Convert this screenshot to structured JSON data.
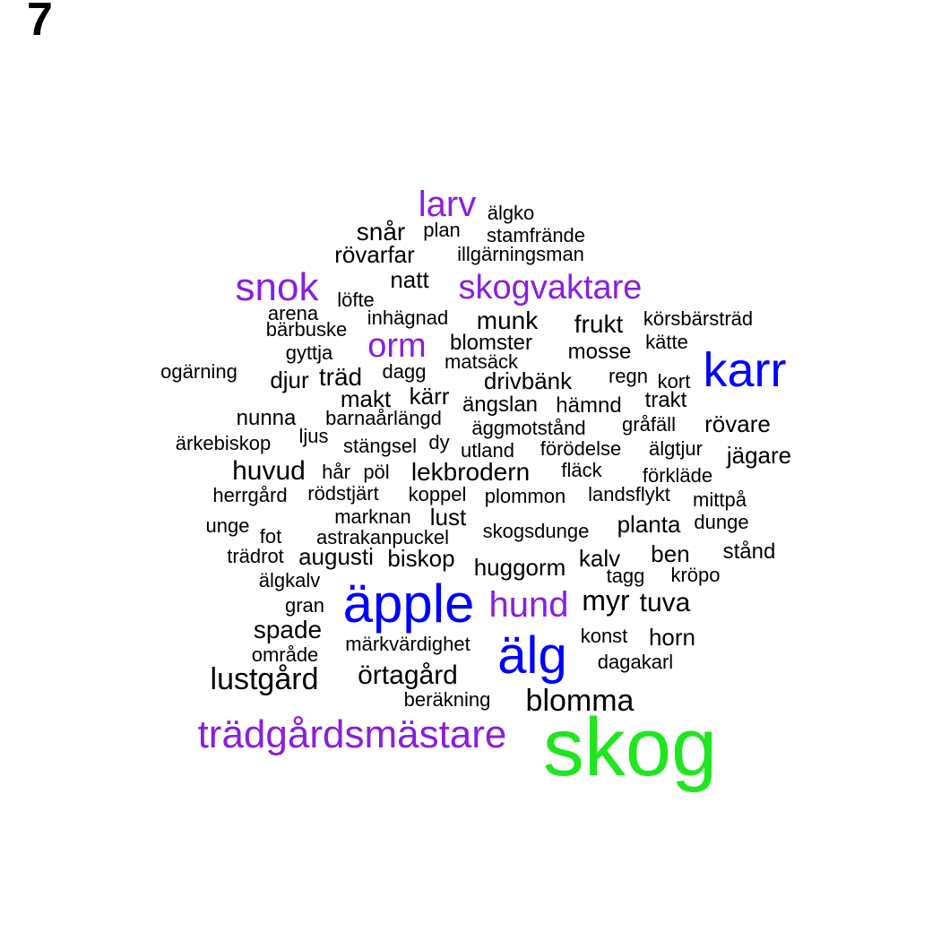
{
  "panel_label": "7",
  "colors": {
    "purple": "#8a1ee0",
    "blue": "#0000ff",
    "green": "#1fe61f",
    "black": "#000000"
  },
  "words": [
    {
      "text": "larv",
      "color": "purple"
    },
    {
      "text": "älgko",
      "color": "black"
    },
    {
      "text": "snår",
      "color": "black"
    },
    {
      "text": "plan",
      "color": "black"
    },
    {
      "text": "stamfrände",
      "color": "black"
    },
    {
      "text": "rövarfar",
      "color": "black"
    },
    {
      "text": "illgärningsman",
      "color": "black"
    },
    {
      "text": "snok",
      "color": "purple"
    },
    {
      "text": "natt",
      "color": "black"
    },
    {
      "text": "skogvaktare",
      "color": "purple"
    },
    {
      "text": "löfte",
      "color": "black"
    },
    {
      "text": "arena",
      "color": "black"
    },
    {
      "text": "inhägnad",
      "color": "black"
    },
    {
      "text": "munk",
      "color": "black"
    },
    {
      "text": "frukt",
      "color": "black"
    },
    {
      "text": "körsbärsträd",
      "color": "black"
    },
    {
      "text": "bärbuske",
      "color": "black"
    },
    {
      "text": "orm",
      "color": "purple"
    },
    {
      "text": "blomster",
      "color": "black"
    },
    {
      "text": "kätte",
      "color": "black"
    },
    {
      "text": "gyttja",
      "color": "black"
    },
    {
      "text": "mosse",
      "color": "black"
    },
    {
      "text": "matsäck",
      "color": "black"
    },
    {
      "text": "karr",
      "color": "blue"
    },
    {
      "text": "ogärning",
      "color": "black"
    },
    {
      "text": "dagg",
      "color": "black"
    },
    {
      "text": "regn",
      "color": "black"
    },
    {
      "text": "kort",
      "color": "black"
    },
    {
      "text": "djur",
      "color": "black"
    },
    {
      "text": "träd",
      "color": "black"
    },
    {
      "text": "drivbänk",
      "color": "black"
    },
    {
      "text": "makt",
      "color": "black"
    },
    {
      "text": "kärr",
      "color": "black"
    },
    {
      "text": "trakt",
      "color": "black"
    },
    {
      "text": "ängslan",
      "color": "black"
    },
    {
      "text": "hämnd",
      "color": "black"
    },
    {
      "text": "nunna",
      "color": "black"
    },
    {
      "text": "barnaårlängd",
      "color": "black"
    },
    {
      "text": "gråfäll",
      "color": "black"
    },
    {
      "text": "rövare",
      "color": "black"
    },
    {
      "text": "äggmotstånd",
      "color": "black"
    },
    {
      "text": "ljus",
      "color": "black"
    },
    {
      "text": "ärkebiskop",
      "color": "black"
    },
    {
      "text": "stängsel",
      "color": "black"
    },
    {
      "text": "dy",
      "color": "black"
    },
    {
      "text": "förödelse",
      "color": "black"
    },
    {
      "text": "älgtjur",
      "color": "black"
    },
    {
      "text": "utland",
      "color": "black"
    },
    {
      "text": "jägare",
      "color": "black"
    },
    {
      "text": "huvud",
      "color": "black"
    },
    {
      "text": "hår",
      "color": "black"
    },
    {
      "text": "pöl",
      "color": "black"
    },
    {
      "text": "lekbrodern",
      "color": "black"
    },
    {
      "text": "fläck",
      "color": "black"
    },
    {
      "text": "förkläde",
      "color": "black"
    },
    {
      "text": "herrgård",
      "color": "black"
    },
    {
      "text": "rödstjärt",
      "color": "black"
    },
    {
      "text": "koppel",
      "color": "black"
    },
    {
      "text": "plommon",
      "color": "black"
    },
    {
      "text": "landsflykt",
      "color": "black"
    },
    {
      "text": "mittpå",
      "color": "black"
    },
    {
      "text": "marknan",
      "color": "black"
    },
    {
      "text": "lust",
      "color": "black"
    },
    {
      "text": "unge",
      "color": "black"
    },
    {
      "text": "planta",
      "color": "black"
    },
    {
      "text": "dunge",
      "color": "black"
    },
    {
      "text": "fot",
      "color": "black"
    },
    {
      "text": "astrakanpuckel",
      "color": "black"
    },
    {
      "text": "skogsdunge",
      "color": "black"
    },
    {
      "text": "stånd",
      "color": "black"
    },
    {
      "text": "trädrot",
      "color": "black"
    },
    {
      "text": "augusti",
      "color": "black"
    },
    {
      "text": "biskop",
      "color": "black"
    },
    {
      "text": "ben",
      "color": "black"
    },
    {
      "text": "huggorm",
      "color": "black"
    },
    {
      "text": "kalv",
      "color": "black"
    },
    {
      "text": "tagg",
      "color": "black"
    },
    {
      "text": "kröpo",
      "color": "black"
    },
    {
      "text": "älgkalv",
      "color": "black"
    },
    {
      "text": "äpple",
      "color": "blue"
    },
    {
      "text": "hund",
      "color": "purple"
    },
    {
      "text": "myr",
      "color": "black"
    },
    {
      "text": "tuva",
      "color": "black"
    },
    {
      "text": "gran",
      "color": "black"
    },
    {
      "text": "spade",
      "color": "black"
    },
    {
      "text": "konst",
      "color": "black"
    },
    {
      "text": "horn",
      "color": "black"
    },
    {
      "text": "område",
      "color": "black"
    },
    {
      "text": "märkvärdighet",
      "color": "black"
    },
    {
      "text": "älg",
      "color": "blue"
    },
    {
      "text": "dagakarl",
      "color": "black"
    },
    {
      "text": "lustgård",
      "color": "black"
    },
    {
      "text": "örtagård",
      "color": "black"
    },
    {
      "text": "beräkning",
      "color": "black"
    },
    {
      "text": "blomma",
      "color": "black"
    },
    {
      "text": "trädgårdsmästare",
      "color": "purple"
    },
    {
      "text": "skog",
      "color": "green"
    }
  ]
}
